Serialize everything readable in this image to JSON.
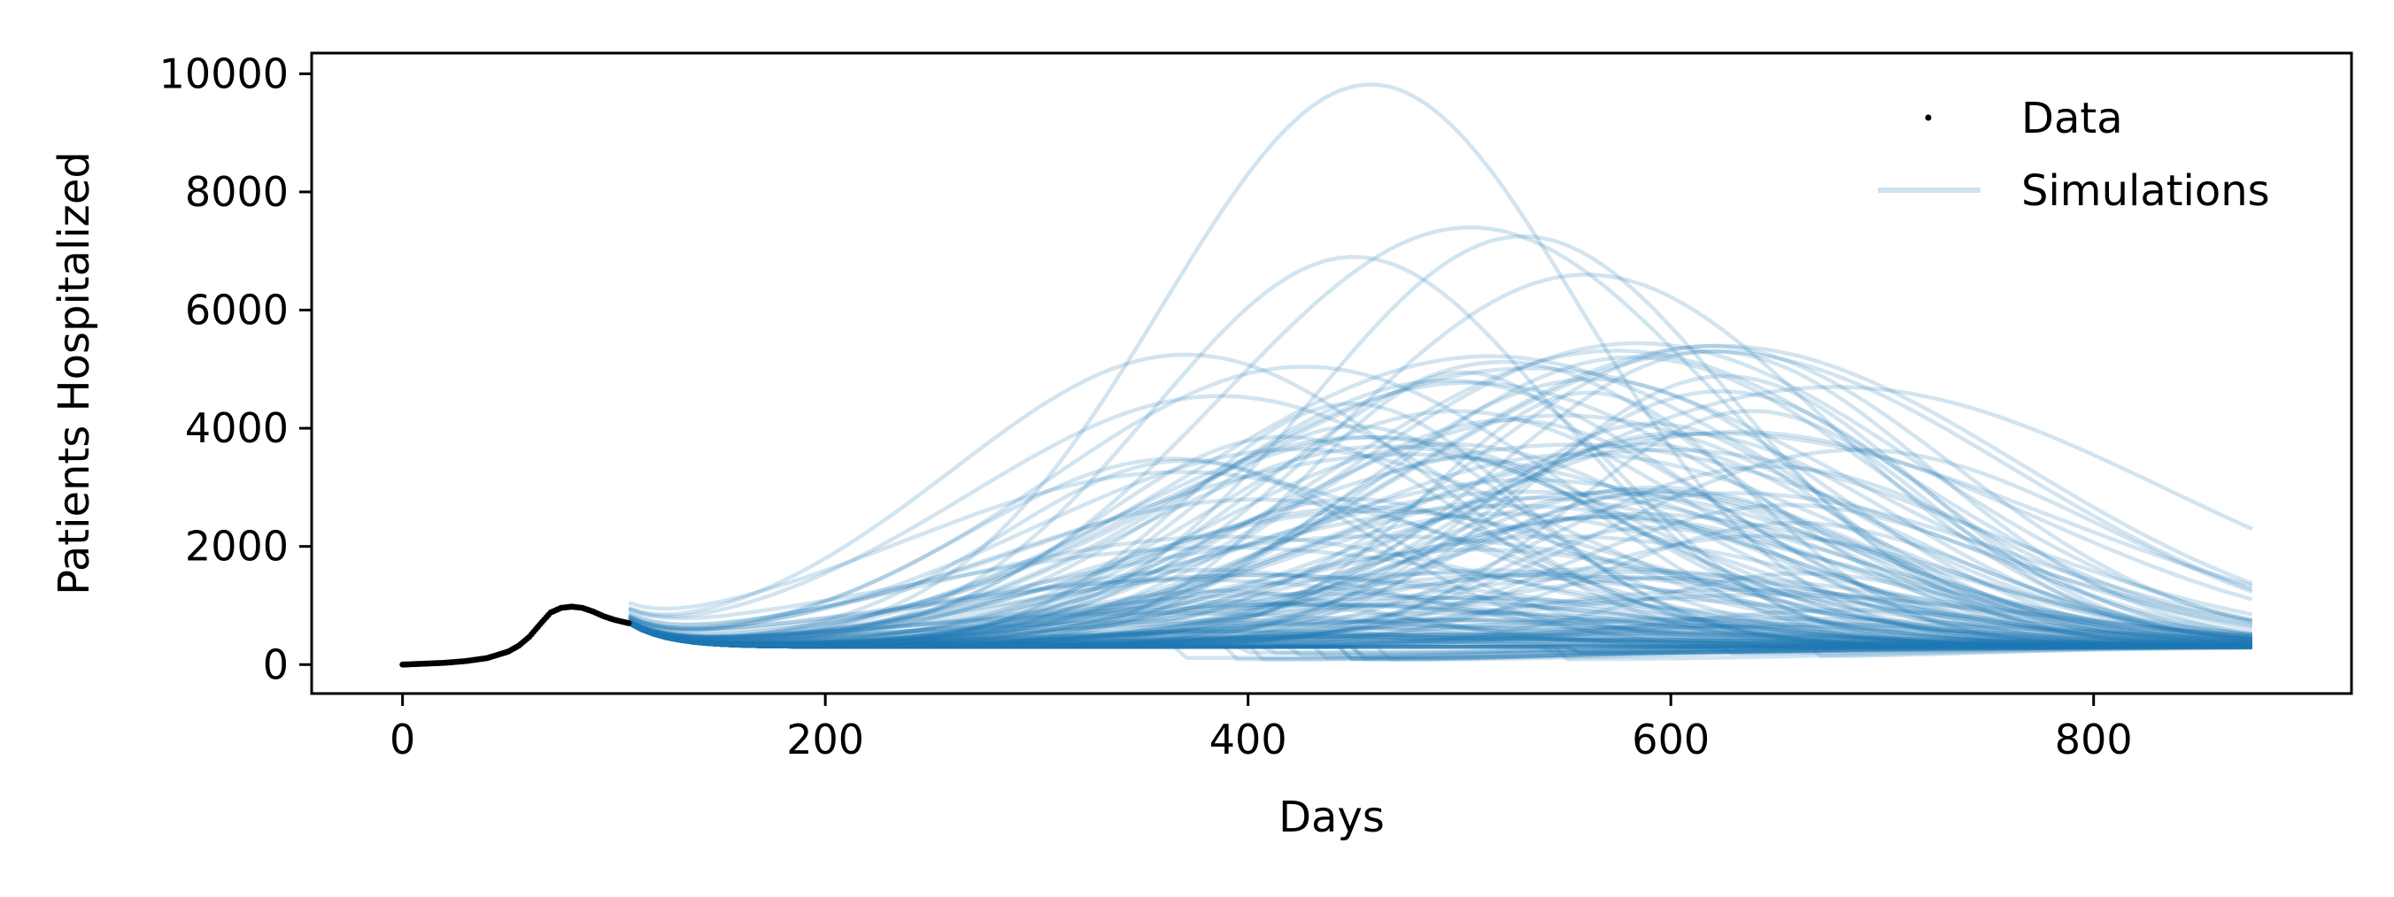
{
  "chart_data": {
    "type": "line",
    "title": "",
    "xlabel": "Days",
    "ylabel": "Patients Hospitalized",
    "xlim": [
      -43,
      922
    ],
    "ylim": [
      -490,
      10350
    ],
    "xticks": [
      0,
      200,
      400,
      600,
      800
    ],
    "yticks": [
      0,
      2000,
      4000,
      6000,
      8000,
      10000
    ],
    "grid": false,
    "legend": {
      "placement": "top-right",
      "entries": [
        "Data",
        "Simulations"
      ]
    },
    "colors": {
      "data": "#000000",
      "simulations": "#1f77b4"
    },
    "data_series": {
      "name": "Data",
      "x": [
        0,
        10,
        20,
        30,
        40,
        50,
        55,
        60,
        65,
        70,
        75,
        80,
        85,
        90,
        95,
        100,
        107
      ],
      "y": [
        0,
        15,
        30,
        60,
        110,
        220,
        320,
        470,
        680,
        880,
        960,
        980,
        960,
        900,
        820,
        760,
        700
      ]
    },
    "simulations": {
      "name": "Simulations",
      "x_start": 107,
      "x_end": 880,
      "start_value": 700,
      "trough_value": 300,
      "envelope": [
        {
          "x": 107,
          "y": 700
        },
        {
          "x": 200,
          "y": 500
        },
        {
          "x": 300,
          "y": 2000
        },
        {
          "x": 400,
          "y": 6800
        },
        {
          "x": 458,
          "y": 9820
        },
        {
          "x": 500,
          "y": 8300
        },
        {
          "x": 600,
          "y": 6500
        },
        {
          "x": 700,
          "y": 3800
        },
        {
          "x": 800,
          "y": 2300
        },
        {
          "x": 880,
          "y": 1500
        }
      ],
      "highlighted_peaks": [
        {
          "peak_day": 458,
          "peak_value": 9820
        },
        {
          "peak_day": 505,
          "peak_value": 7400
        },
        {
          "peak_day": 530,
          "peak_value": 7250
        },
        {
          "peak_day": 450,
          "peak_value": 6900
        },
        {
          "peak_day": 560,
          "peak_value": 6600
        },
        {
          "peak_day": 620,
          "peak_value": 5300
        }
      ]
    }
  }
}
